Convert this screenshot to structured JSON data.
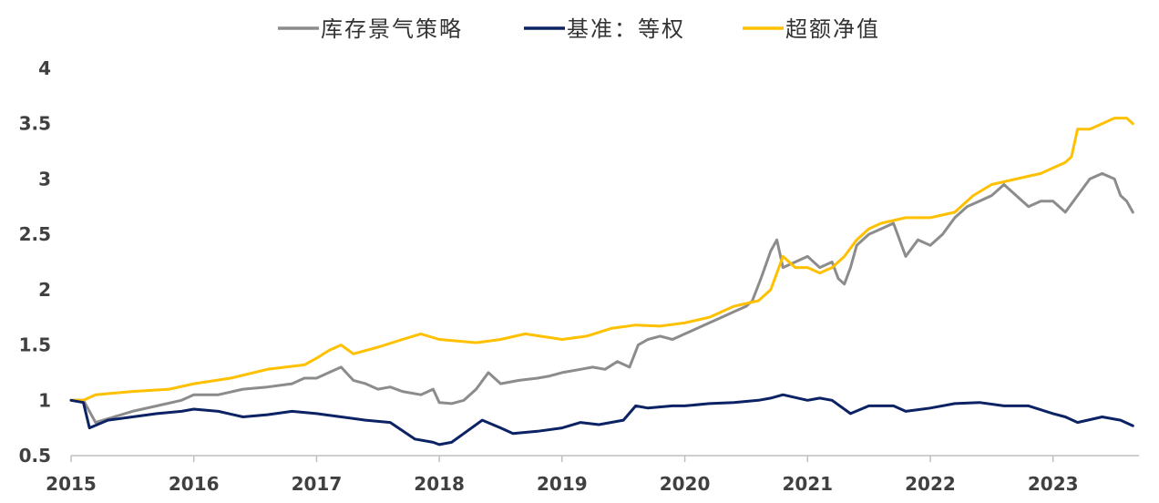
{
  "chart_data": {
    "type": "line",
    "title": "",
    "xlabel": "",
    "ylabel": "",
    "xlim": [
      2015,
      2023.7
    ],
    "ylim": [
      0.5,
      4
    ],
    "x_ticks": [
      2015,
      2016,
      2017,
      2018,
      2019,
      2020,
      2021,
      2022,
      2023
    ],
    "x_tick_labels": [
      "2015",
      "2016",
      "2017",
      "2018",
      "2019",
      "2020",
      "2021",
      "2022",
      "2023"
    ],
    "y_ticks": [
      0.5,
      1,
      1.5,
      2,
      2.5,
      3,
      3.5,
      4
    ],
    "y_tick_labels": [
      "0.5",
      "1",
      "1.5",
      "2",
      "2.5",
      "3",
      "3.5",
      "4"
    ],
    "legend_position": "top-center",
    "series": [
      {
        "name": "库存景气策略",
        "color": "#8c8c8c",
        "x": [
          2015.0,
          2015.1,
          2015.2,
          2015.35,
          2015.5,
          2015.7,
          2015.9,
          2016.0,
          2016.2,
          2016.4,
          2016.6,
          2016.8,
          2016.9,
          2017.0,
          2017.1,
          2017.2,
          2017.3,
          2017.4,
          2017.5,
          2017.6,
          2017.7,
          2017.85,
          2017.95,
          2018.0,
          2018.1,
          2018.2,
          2018.3,
          2018.4,
          2018.5,
          2018.65,
          2018.8,
          2018.9,
          2019.0,
          2019.15,
          2019.25,
          2019.35,
          2019.45,
          2019.55,
          2019.62,
          2019.7,
          2019.8,
          2019.9,
          2020.0,
          2020.1,
          2020.2,
          2020.3,
          2020.4,
          2020.5,
          2020.55,
          2020.62,
          2020.7,
          2020.75,
          2020.8,
          2020.9,
          2021.0,
          2021.1,
          2021.2,
          2021.25,
          2021.3,
          2021.35,
          2021.4,
          2021.5,
          2021.6,
          2021.7,
          2021.8,
          2021.9,
          2022.0,
          2022.1,
          2022.2,
          2022.3,
          2022.4,
          2022.5,
          2022.55,
          2022.6,
          2022.7,
          2022.8,
          2022.9,
          2023.0,
          2023.1,
          2023.2,
          2023.3,
          2023.4,
          2023.5,
          2023.55,
          2023.6,
          2023.65
        ],
        "y": [
          1.0,
          1.0,
          0.8,
          0.85,
          0.9,
          0.95,
          1.0,
          1.05,
          1.05,
          1.1,
          1.12,
          1.15,
          1.2,
          1.2,
          1.25,
          1.3,
          1.18,
          1.15,
          1.1,
          1.12,
          1.08,
          1.05,
          1.1,
          0.98,
          0.97,
          1.0,
          1.1,
          1.25,
          1.15,
          1.18,
          1.2,
          1.22,
          1.25,
          1.28,
          1.3,
          1.28,
          1.35,
          1.3,
          1.5,
          1.55,
          1.58,
          1.55,
          1.6,
          1.65,
          1.7,
          1.75,
          1.8,
          1.85,
          1.9,
          2.1,
          2.35,
          2.45,
          2.2,
          2.25,
          2.3,
          2.2,
          2.25,
          2.1,
          2.05,
          2.2,
          2.4,
          2.5,
          2.55,
          2.6,
          2.3,
          2.45,
          2.4,
          2.5,
          2.65,
          2.75,
          2.8,
          2.85,
          2.9,
          2.95,
          2.85,
          2.75,
          2.8,
          2.8,
          2.7,
          2.85,
          3.0,
          3.05,
          3.0,
          2.85,
          2.8,
          2.7
        ]
      },
      {
        "name": "基准：等权",
        "color": "#0b2264",
        "x": [
          2015.0,
          2015.1,
          2015.15,
          2015.3,
          2015.5,
          2015.7,
          2015.9,
          2016.0,
          2016.2,
          2016.4,
          2016.6,
          2016.8,
          2017.0,
          2017.2,
          2017.4,
          2017.6,
          2017.8,
          2017.95,
          2018.0,
          2018.1,
          2018.2,
          2018.35,
          2018.5,
          2018.6,
          2018.8,
          2019.0,
          2019.15,
          2019.3,
          2019.5,
          2019.6,
          2019.7,
          2019.9,
          2020.0,
          2020.2,
          2020.4,
          2020.6,
          2020.7,
          2020.8,
          2021.0,
          2021.1,
          2021.2,
          2021.35,
          2021.5,
          2021.7,
          2021.8,
          2022.0,
          2022.2,
          2022.4,
          2022.6,
          2022.8,
          2023.0,
          2023.1,
          2023.2,
          2023.4,
          2023.55,
          2023.65
        ],
        "y": [
          1.0,
          0.98,
          0.75,
          0.82,
          0.85,
          0.88,
          0.9,
          0.92,
          0.9,
          0.85,
          0.87,
          0.9,
          0.88,
          0.85,
          0.82,
          0.8,
          0.65,
          0.62,
          0.6,
          0.62,
          0.7,
          0.82,
          0.75,
          0.7,
          0.72,
          0.75,
          0.8,
          0.78,
          0.82,
          0.95,
          0.93,
          0.95,
          0.95,
          0.97,
          0.98,
          1.0,
          1.02,
          1.05,
          1.0,
          1.02,
          1.0,
          0.88,
          0.95,
          0.95,
          0.9,
          0.93,
          0.97,
          0.98,
          0.95,
          0.95,
          0.88,
          0.85,
          0.8,
          0.85,
          0.82,
          0.77
        ]
      },
      {
        "name": "超额净值",
        "color": "#ffc000",
        "x": [
          2015.0,
          2015.1,
          2015.2,
          2015.5,
          2015.8,
          2016.0,
          2016.3,
          2016.6,
          2016.9,
          2017.0,
          2017.1,
          2017.2,
          2017.3,
          2017.5,
          2017.7,
          2017.85,
          2018.0,
          2018.3,
          2018.5,
          2018.7,
          2019.0,
          2019.2,
          2019.4,
          2019.6,
          2019.8,
          2020.0,
          2020.2,
          2020.4,
          2020.6,
          2020.7,
          2020.8,
          2020.9,
          2021.0,
          2021.1,
          2021.2,
          2021.3,
          2021.4,
          2021.5,
          2021.6,
          2021.8,
          2022.0,
          2022.2,
          2022.35,
          2022.5,
          2022.7,
          2022.9,
          2023.0,
          2023.1,
          2023.15,
          2023.2,
          2023.3,
          2023.4,
          2023.5,
          2023.6,
          2023.65
        ],
        "y": [
          1.0,
          1.0,
          1.05,
          1.08,
          1.1,
          1.15,
          1.2,
          1.28,
          1.32,
          1.38,
          1.45,
          1.5,
          1.42,
          1.48,
          1.55,
          1.6,
          1.55,
          1.52,
          1.55,
          1.6,
          1.55,
          1.58,
          1.65,
          1.68,
          1.67,
          1.7,
          1.75,
          1.85,
          1.9,
          2.0,
          2.3,
          2.2,
          2.2,
          2.15,
          2.2,
          2.3,
          2.45,
          2.55,
          2.6,
          2.65,
          2.65,
          2.7,
          2.85,
          2.95,
          3.0,
          3.05,
          3.1,
          3.15,
          3.2,
          3.45,
          3.45,
          3.5,
          3.55,
          3.55,
          3.5
        ]
      }
    ]
  }
}
